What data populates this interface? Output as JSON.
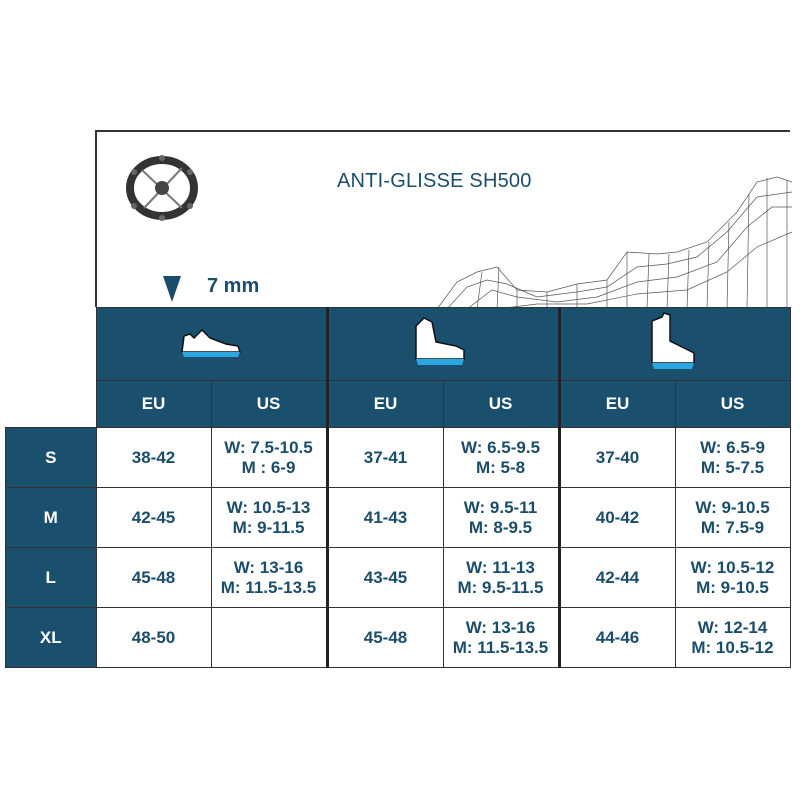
{
  "title": "ANTI-GLISSE SH500",
  "spike_depth": "7 mm",
  "colors": {
    "primary": "#1b4f6e",
    "sole_accent": "#2aa7e0"
  },
  "shoe_types": [
    {
      "icon": "low-shoe-icon"
    },
    {
      "icon": "mid-boot-icon"
    },
    {
      "icon": "high-boot-icon"
    }
  ],
  "col_headers": [
    "EU",
    "US",
    "EU",
    "US",
    "EU",
    "US"
  ],
  "rows": [
    {
      "size": "S",
      "cells": [
        [
          "38-42"
        ],
        [
          "W: 7.5-10.5",
          "M : 6-9"
        ],
        [
          "37-41"
        ],
        [
          "W: 6.5-9.5",
          "M: 5-8"
        ],
        [
          "37-40"
        ],
        [
          "W: 6.5-9",
          "M: 5-7.5"
        ]
      ]
    },
    {
      "size": "M",
      "cells": [
        [
          "42-45"
        ],
        [
          "W: 10.5-13",
          "M: 9-11.5"
        ],
        [
          "41-43"
        ],
        [
          "W: 9.5-11",
          "M: 8-9.5"
        ],
        [
          "40-42"
        ],
        [
          "W: 9-10.5",
          "M: 7.5-9"
        ]
      ]
    },
    {
      "size": "L",
      "cells": [
        [
          "45-48"
        ],
        [
          "W: 13-16",
          "M: 11.5-13.5"
        ],
        [
          "43-45"
        ],
        [
          "W: 11-13",
          "M: 9.5-11.5"
        ],
        [
          "42-44"
        ],
        [
          "W: 10.5-12",
          "M: 9-10.5"
        ]
      ]
    },
    {
      "size": "XL",
      "cells": [
        [
          "48-50"
        ],
        [
          ""
        ],
        [
          "45-48"
        ],
        [
          "W: 13-16",
          "M: 11.5-13.5"
        ],
        [
          "44-46"
        ],
        [
          "W: 12-14",
          "M: 10.5-12"
        ]
      ]
    }
  ]
}
